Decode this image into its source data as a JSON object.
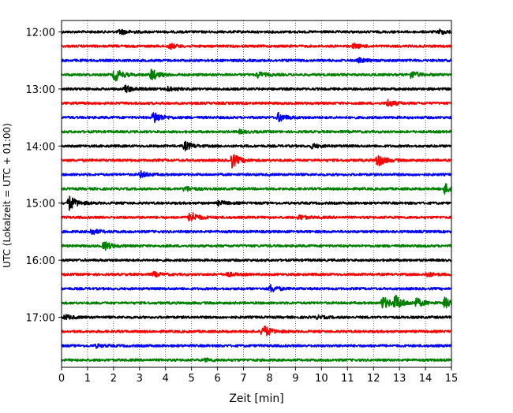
{
  "chart_data": {
    "type": "line",
    "chart_kind": "helicorder seismogram",
    "xlabel": "Zeit  [min]",
    "ylabel": "UTC (Lokalzeit = UTC + 01:00)",
    "x_ticks": [
      0,
      1,
      2,
      3,
      4,
      5,
      6,
      7,
      8,
      9,
      10,
      11,
      12,
      13,
      14,
      15
    ],
    "xlim": [
      0,
      15
    ],
    "y_tick_labels": [
      "12:00",
      "13:00",
      "14:00",
      "15:00",
      "16:00",
      "17:00"
    ],
    "trace_minutes": 15,
    "grid": "vertical dotted at each minute",
    "trace_colors": [
      "#000000",
      "#ff0000",
      "#0000ff",
      "#008000"
    ],
    "traces": [
      {
        "start": "12:00",
        "color": "#000000",
        "events": [
          {
            "t": 2.2,
            "a": 0.35
          },
          {
            "t": 14.5,
            "a": 0.3
          }
        ]
      },
      {
        "start": "12:15",
        "color": "#ff0000",
        "events": [
          {
            "t": 4.1,
            "a": 0.35
          },
          {
            "t": 11.2,
            "a": 0.3
          }
        ]
      },
      {
        "start": "12:30",
        "color": "#0000ff",
        "events": [
          {
            "t": 11.4,
            "a": 0.25
          }
        ]
      },
      {
        "start": "12:45",
        "color": "#008000",
        "events": [
          {
            "t": 2.0,
            "a": 0.9
          },
          {
            "t": 3.4,
            "a": 0.8
          },
          {
            "t": 7.5,
            "a": 0.4
          },
          {
            "t": 13.4,
            "a": 0.5
          }
        ]
      },
      {
        "start": "13:00",
        "color": "#000000",
        "events": [
          {
            "t": 2.4,
            "a": 0.5
          },
          {
            "t": 4.0,
            "a": 0.3
          }
        ]
      },
      {
        "start": "13:15",
        "color": "#ff0000",
        "events": [
          {
            "t": 12.5,
            "a": 0.5
          }
        ]
      },
      {
        "start": "13:30",
        "color": "#0000ff",
        "events": [
          {
            "t": 3.5,
            "a": 0.9
          },
          {
            "t": 8.3,
            "a": 0.6
          }
        ]
      },
      {
        "start": "13:45",
        "color": "#008000",
        "events": [
          {
            "t": 6.8,
            "a": 0.2
          }
        ]
      },
      {
        "start": "14:00",
        "color": "#000000",
        "events": [
          {
            "t": 4.7,
            "a": 0.6
          },
          {
            "t": 9.6,
            "a": 0.3
          }
        ]
      },
      {
        "start": "14:15",
        "color": "#ff0000",
        "events": [
          {
            "t": 6.5,
            "a": 1.0
          },
          {
            "t": 12.1,
            "a": 0.9
          }
        ]
      },
      {
        "start": "14:30",
        "color": "#0000ff",
        "events": [
          {
            "t": 3.0,
            "a": 0.4
          }
        ]
      },
      {
        "start": "14:45",
        "color": "#008000",
        "events": [
          {
            "t": 4.7,
            "a": 0.4
          },
          {
            "t": 14.7,
            "a": 0.7
          }
        ]
      },
      {
        "start": "15:00",
        "color": "#000000",
        "events": [
          {
            "t": 0.25,
            "a": 1.0
          },
          {
            "t": 6.0,
            "a": 0.3
          }
        ]
      },
      {
        "start": "15:15",
        "color": "#ff0000",
        "events": [
          {
            "t": 4.9,
            "a": 0.8
          },
          {
            "t": 9.1,
            "a": 0.3
          }
        ]
      },
      {
        "start": "15:30",
        "color": "#0000ff",
        "events": [
          {
            "t": 1.1,
            "a": 0.4
          }
        ]
      },
      {
        "start": "15:45",
        "color": "#008000",
        "events": [
          {
            "t": 1.6,
            "a": 0.6
          }
        ]
      },
      {
        "start": "16:00",
        "color": "#000000",
        "events": []
      },
      {
        "start": "16:15",
        "color": "#ff0000",
        "events": [
          {
            "t": 3.5,
            "a": 0.3
          },
          {
            "t": 6.3,
            "a": 0.3
          },
          {
            "t": 14.0,
            "a": 0.3
          }
        ]
      },
      {
        "start": "16:30",
        "color": "#0000ff",
        "events": [
          {
            "t": 8.0,
            "a": 0.5
          }
        ]
      },
      {
        "start": "16:45",
        "color": "#008000",
        "events": [
          {
            "t": 12.3,
            "a": 0.9
          },
          {
            "t": 12.8,
            "a": 1.0
          },
          {
            "t": 13.6,
            "a": 0.6
          },
          {
            "t": 14.7,
            "a": 0.7
          }
        ]
      },
      {
        "start": "17:00",
        "color": "#000000",
        "events": [
          {
            "t": 0.1,
            "a": 0.3
          },
          {
            "t": 9.8,
            "a": 0.2
          }
        ]
      },
      {
        "start": "17:15",
        "color": "#ff0000",
        "events": [
          {
            "t": 7.7,
            "a": 0.9
          }
        ]
      },
      {
        "start": "17:30",
        "color": "#0000ff",
        "events": [
          {
            "t": 1.3,
            "a": 0.2
          }
        ]
      },
      {
        "start": "17:45",
        "color": "#008000",
        "events": [
          {
            "t": 5.5,
            "a": 0.2
          }
        ]
      }
    ]
  }
}
